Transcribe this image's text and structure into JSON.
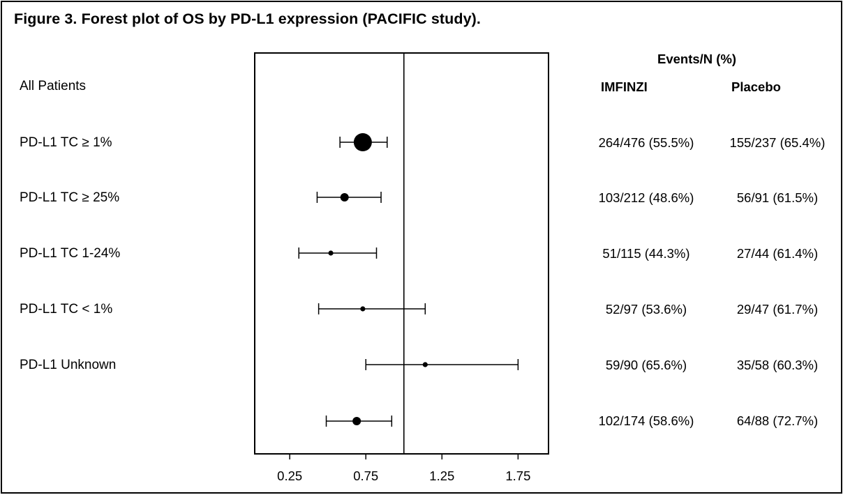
{
  "title": "Figure 3. Forest plot of OS by PD-L1 expression (PACIFIC study).",
  "headers": {
    "group": "Events/N (%)",
    "col1": "IMFINZI",
    "col2": "Placebo"
  },
  "rows": [
    {
      "label": "All Patients",
      "imfinzi": "",
      "placebo": ""
    },
    {
      "label": "PD-L1 TC ≥ 1%",
      "imfinzi": "264/476 (55.5%)",
      "placebo": "155/237 (65.4%)"
    },
    {
      "label": "PD-L1 TC ≥ 25%",
      "imfinzi": "103/212 (48.6%)",
      "placebo": "56/91 (61.5%)"
    },
    {
      "label": "PD-L1 TC 1-24%",
      "imfinzi": "51/115 (44.3%)",
      "placebo": "27/44 (61.4%)"
    },
    {
      "label": "PD-L1 TC < 1%",
      "imfinzi": "52/97 (53.6%)",
      "placebo": "29/47 (61.7%)"
    },
    {
      "label": "PD-L1 Unknown",
      "imfinzi": "59/90 (65.6%)",
      "placebo": "35/58 (60.3%)"
    },
    {
      "label": "",
      "imfinzi": "102/174 (58.6%)",
      "placebo": "64/88 (72.7%)"
    }
  ],
  "chart_data": {
    "type": "scatter",
    "subtype": "forest",
    "title": "",
    "xlabel": "",
    "ylabel": "",
    "xlim": [
      0.02,
      1.95
    ],
    "xticks": [
      0.25,
      0.75,
      1.25,
      1.75
    ],
    "xtick_labels": [
      "0.25",
      "0.75",
      "1.25",
      "1.75"
    ],
    "reference_line": 1.0,
    "grid": false,
    "estimates": [
      {
        "hr": 0.73,
        "lower": 0.58,
        "upper": 0.89,
        "marker_weight": 4
      },
      {
        "hr": 0.61,
        "lower": 0.43,
        "upper": 0.85,
        "marker_weight": 2
      },
      {
        "hr": 0.52,
        "lower": 0.31,
        "upper": 0.82,
        "marker_weight": 1
      },
      {
        "hr": 0.73,
        "lower": 0.44,
        "upper": 1.14,
        "marker_weight": 1
      },
      {
        "hr": 1.14,
        "lower": 0.75,
        "upper": 1.75,
        "marker_weight": 1
      },
      {
        "hr": 0.69,
        "lower": 0.49,
        "upper": 0.92,
        "marker_weight": 2
      }
    ]
  }
}
